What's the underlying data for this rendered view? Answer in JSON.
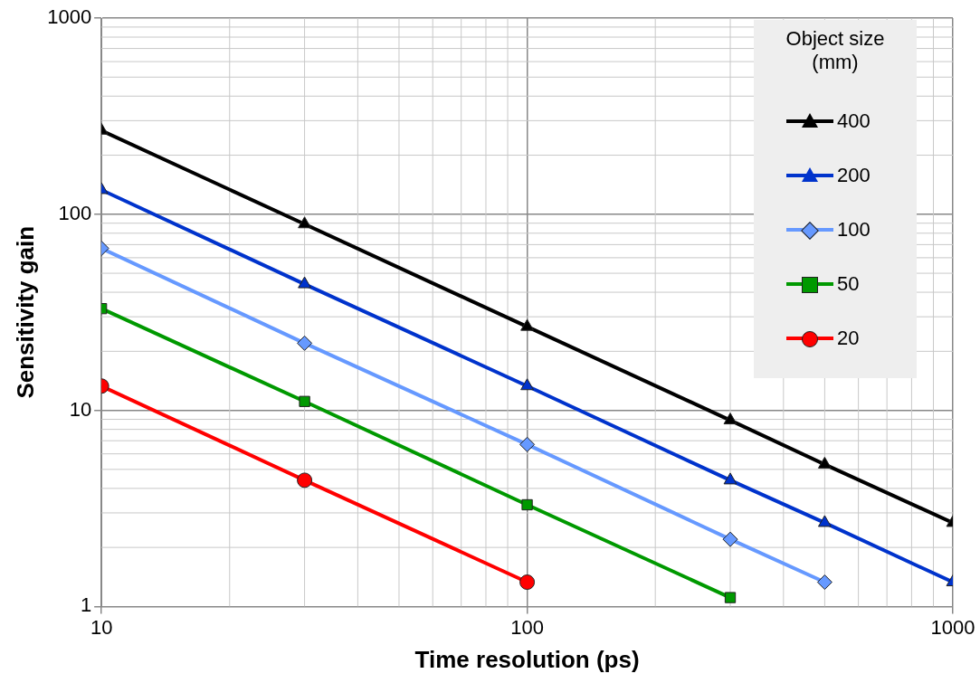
{
  "chart_data": {
    "type": "line",
    "xlabel": "Time resolution (ps)",
    "ylabel": "Sensitivity gain",
    "legend_title": "Object size (mm)",
    "legend": "top right",
    "grid": true,
    "log": "xy",
    "xlim": [
      10,
      1000
    ],
    "xticks": [
      10,
      100,
      1000
    ],
    "ylim": [
      1,
      1000
    ],
    "yticks": [
      1,
      10,
      100,
      1000
    ],
    "series": [
      {
        "name": "400",
        "color": "#000000",
        "marker": "triangle",
        "x": [
          10,
          30,
          100,
          300,
          500,
          1000
        ],
        "values": [
          267,
          89,
          26.7,
          8.9,
          5.3,
          2.67
        ]
      },
      {
        "name": "200",
        "color": "#0033cc",
        "marker": "triangle",
        "x": [
          10,
          30,
          100,
          300,
          500,
          1000
        ],
        "values": [
          133,
          44,
          13.3,
          4.4,
          2.67,
          1.33
        ]
      },
      {
        "name": "100",
        "color": "#6699ff",
        "marker": "diamond",
        "x": [
          10,
          30,
          100,
          300,
          500
        ],
        "values": [
          67,
          22,
          6.7,
          2.2,
          1.33
        ]
      },
      {
        "name": "50",
        "color": "#009900",
        "marker": "square",
        "x": [
          10,
          30,
          100,
          300
        ],
        "values": [
          33,
          11.1,
          3.3,
          1.11
        ]
      },
      {
        "name": "20",
        "color": "#ff0000",
        "marker": "circle",
        "x": [
          10,
          30,
          100
        ],
        "values": [
          13.3,
          4.4,
          1.33
        ]
      }
    ]
  }
}
